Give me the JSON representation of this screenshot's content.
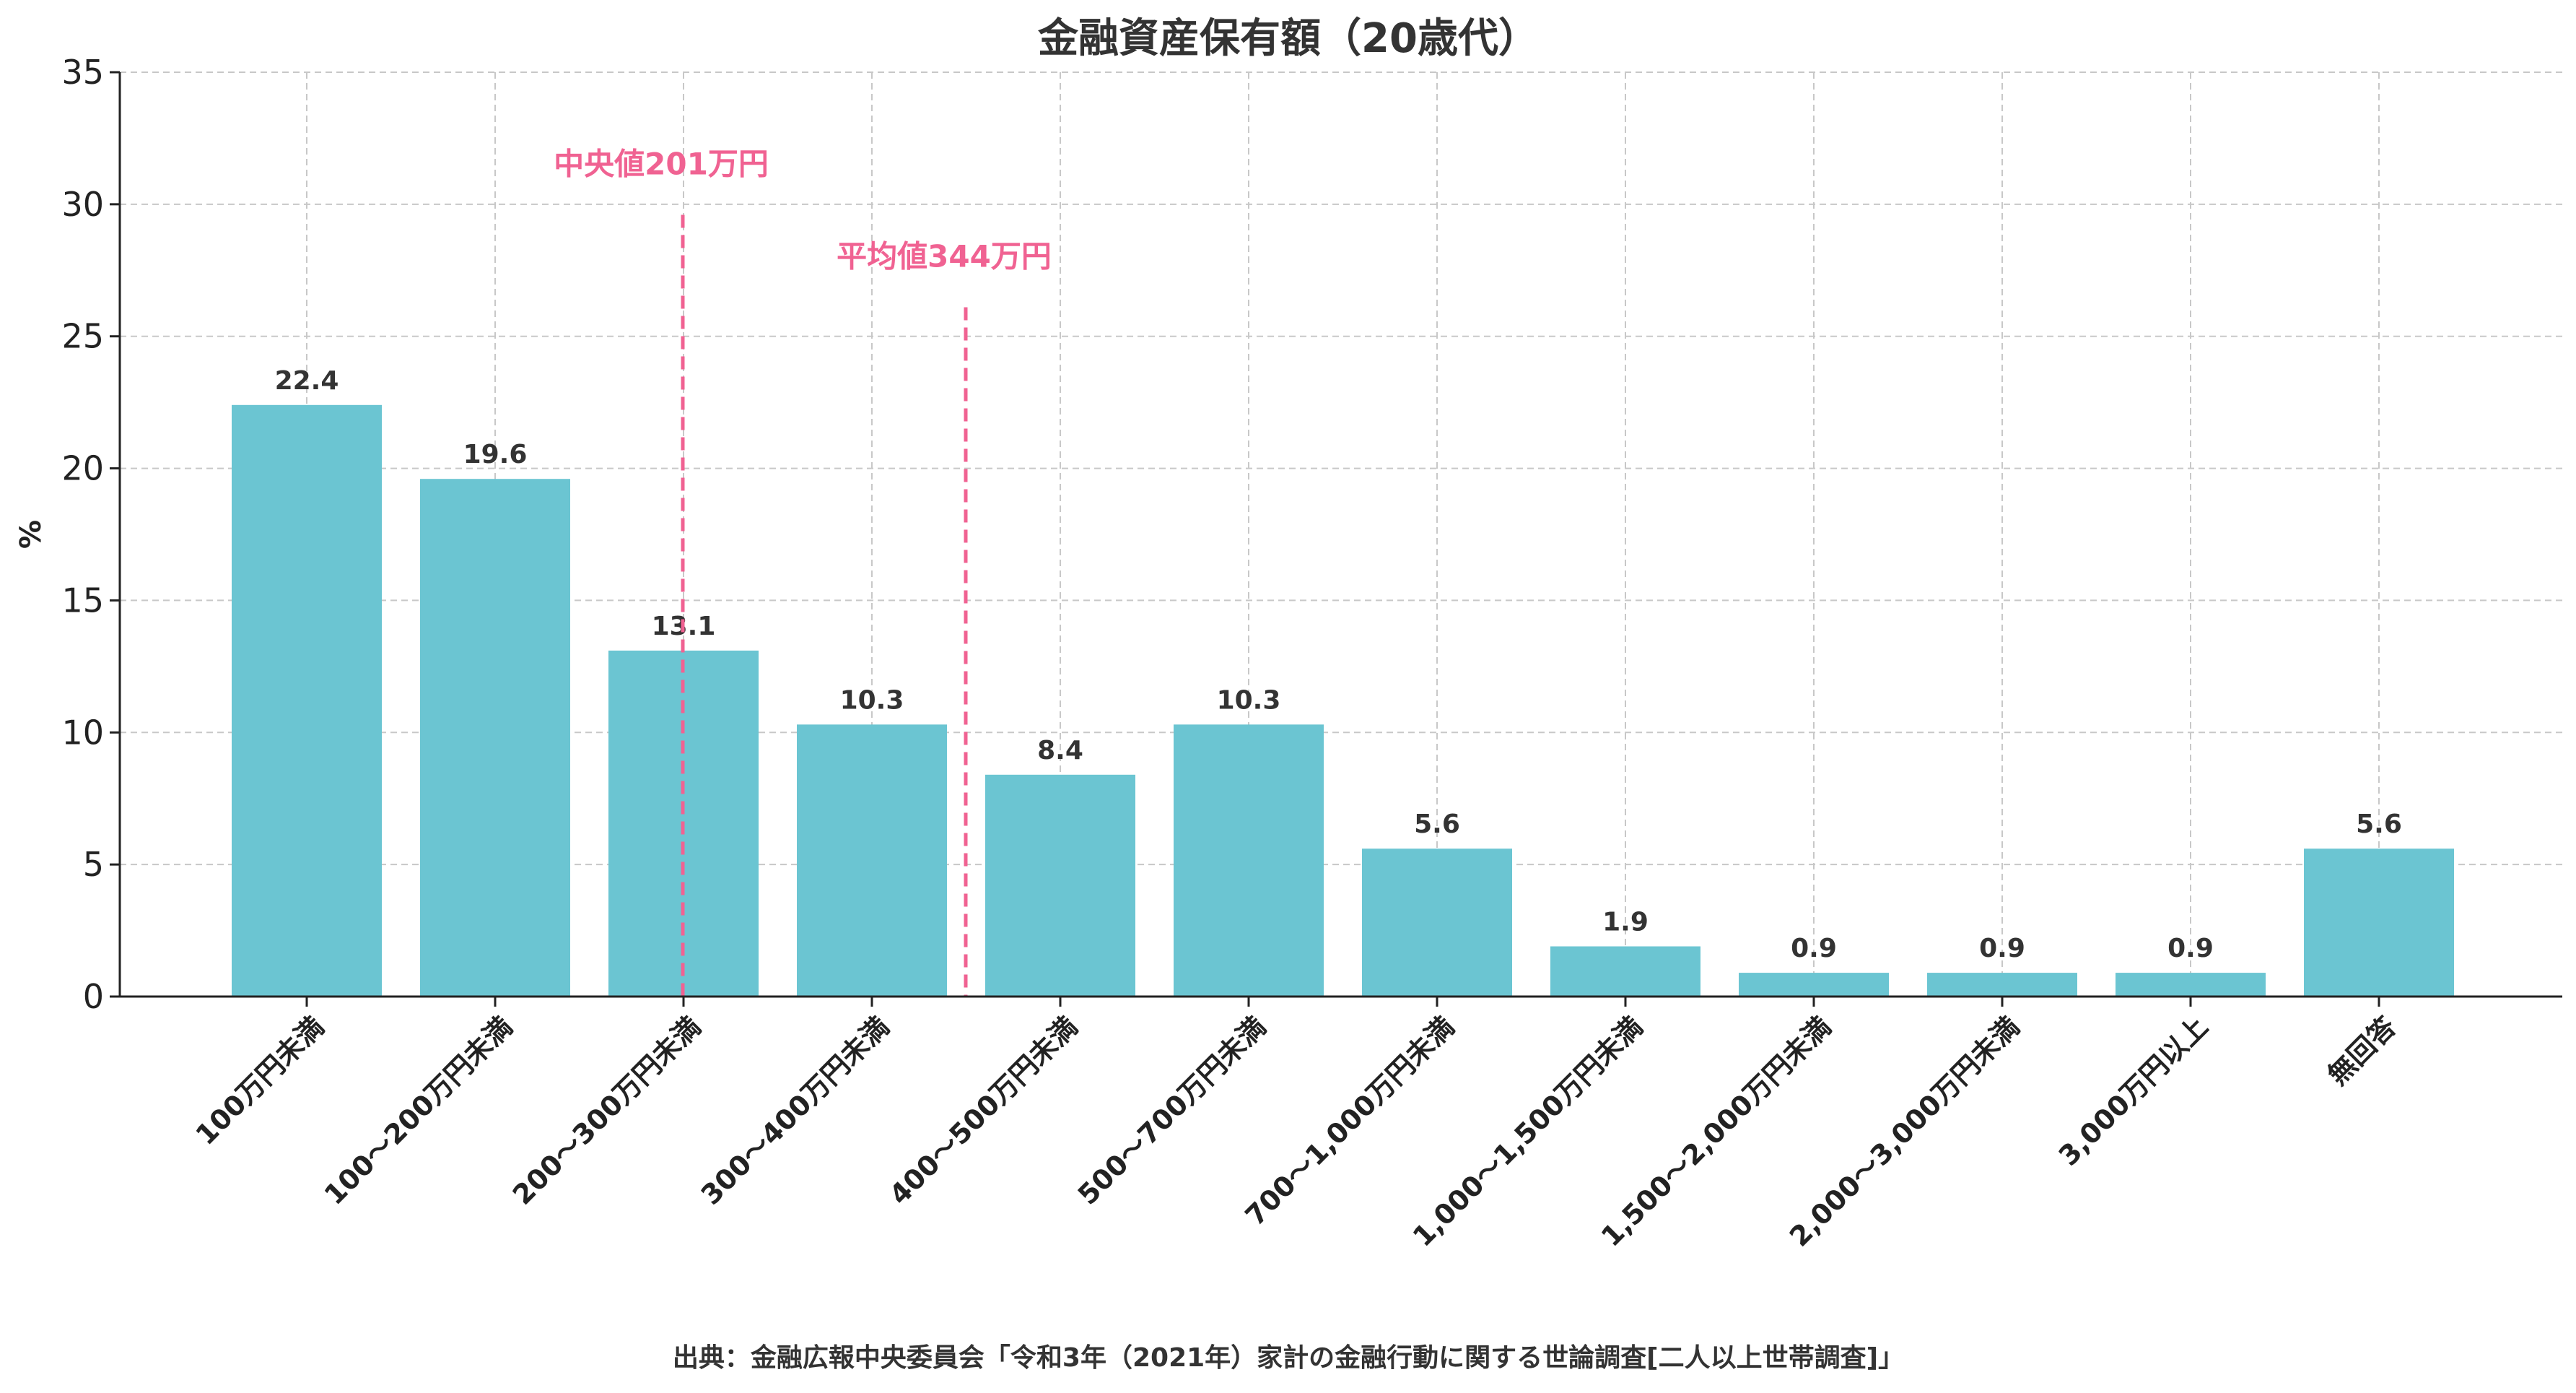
{
  "chart_data": {
    "type": "bar",
    "title": "金融資産保有額（20歳代）",
    "ylabel": "%",
    "xlabel": "",
    "ylim": [
      0,
      35
    ],
    "yticks": [
      0,
      5,
      10,
      15,
      20,
      25,
      30,
      35
    ],
    "grid": true,
    "categories": [
      "100万円未満",
      "100～200万円未満",
      "200～300万円未満",
      "300～400万円未満",
      "400～500万円未満",
      "500～700万円未満",
      "700～1,000万円未満",
      "1,000～1,500万円未満",
      "1,500～2,000万円未満",
      "2,000～3,000万円未満",
      "3,000万円以上",
      "無回答"
    ],
    "values": [
      22.4,
      19.6,
      13.1,
      10.3,
      8.4,
      10.3,
      5.6,
      1.9,
      0.9,
      0.9,
      0.9,
      5.6
    ],
    "value_labels": [
      "22.4",
      "19.6",
      "13.1",
      "10.3",
      "8.4",
      "10.3",
      "5.6",
      "1.9",
      "0.9",
      "0.9",
      "0.9",
      "5.6"
    ],
    "bar_color": "#6bc5d2",
    "reference_lines": [
      {
        "label": "中央値201万円",
        "x_position": 2.0,
        "y_top": 29.6,
        "color": "#f06292"
      },
      {
        "label": "平均値344万円",
        "x_position": 3.5,
        "y_top": 26.1,
        "color": "#f06292"
      }
    ],
    "source": "出典：金融広報中央委員会「令和3年（2021年）家計の金融行動に関する世論調査[二人以上世帯調査]」"
  }
}
